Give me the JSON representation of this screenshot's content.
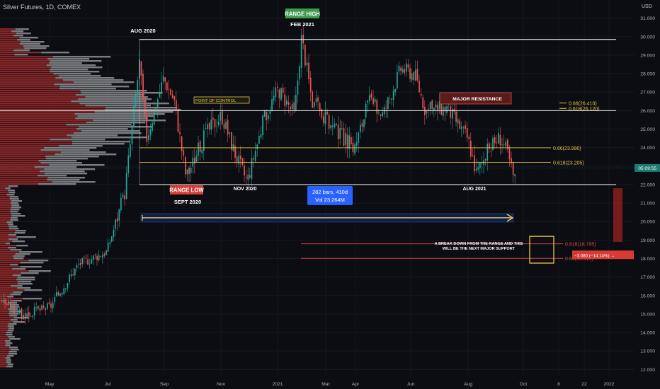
{
  "header": {
    "symbol_label": "Silver Futures, 1D, COMEX",
    "currency": "USD"
  },
  "price_axis": {
    "ticks": [
      "31.000",
      "30.000",
      "29.000",
      "28.000",
      "27.000",
      "26.000",
      "25.000",
      "24.000",
      "23.000",
      "22.000",
      "21.000",
      "20.000",
      "19.000",
      "18.000",
      "17.000",
      "16.000",
      "15.000",
      "14.000",
      "13.000",
      "12.000"
    ],
    "current_price": "05:09:55"
  },
  "time_axis": {
    "ticks": [
      "May",
      "Jul",
      "Sep",
      "Nov",
      "2021",
      "Mar",
      "Apr",
      "Jun",
      "Aug",
      "Oct",
      "8",
      "22",
      "2022"
    ]
  },
  "annotations": {
    "aug2020": "AUG 2020",
    "range_high_badge": "RANGE HIGH",
    "feb2021": "FEB 2021",
    "range_low_badge": "RANGE LOW",
    "sept2020": "SEPT 2020",
    "nov2020": "NOV 2020",
    "aug2021": "AUG 2021",
    "point_of_control": "POINT OF CONTROL",
    "major_resistance": "MAJOR RESISTANCE",
    "measure_line1": "282 bars, 410d",
    "measure_line2": "Vol 23.264M",
    "breakdown_line1": "A BREAK DOWN FROM  THE RANGE AND THIS",
    "breakdown_line2": "WILL BE THE NEXT MAJOR SUPPORT",
    "drop_label": "−3.080 (−14.14%) →"
  },
  "fib_levels": [
    {
      "label": "0.66(26.410)",
      "price": 26.41
    },
    {
      "label": "0.618(26.120)",
      "price": 26.12
    },
    {
      "label": "0.66(23.990)",
      "price": 23.99
    },
    {
      "label": "0.618(23.205)",
      "price": 23.205
    },
    {
      "label": "0.618(18.795)",
      "price": 18.795
    },
    {
      "label": "0.66(18.010)",
      "price": 18.01
    }
  ],
  "colors": {
    "up": "#26a69a",
    "down": "#ef5350",
    "range_line": "#e0e0e0",
    "fib": "#e8c547",
    "support": "#d84a3a",
    "measure_box": "#2962ff"
  },
  "chart_data": {
    "type": "candlestick",
    "title": "Silver Futures, 1D, COMEX",
    "ylim": [
      11.4,
      31.6
    ],
    "key_levels": {
      "range_high": 29.85,
      "point_of_control": 26.0,
      "range_low": 22.0
    },
    "x": [
      "2020-05",
      "2020-06",
      "2020-07",
      "2020-07-20",
      "2020-08",
      "2020-08-10",
      "2020-09",
      "2020-09-20",
      "2020-10",
      "2020-11",
      "2020-11-25",
      "2020-12",
      "2021-01",
      "2021-02",
      "2021-02-10",
      "2021-03",
      "2021-04",
      "2021-05",
      "2021-06",
      "2021-07",
      "2021-08",
      "2021-08-20",
      "2021-09"
    ],
    "close": [
      15.5,
      17.8,
      18.6,
      22.5,
      28.5,
      27.2,
      24.0,
      23.3,
      24.2,
      22.2,
      23.7,
      25.6,
      26.8,
      29.4,
      27.2,
      25.6,
      26.2,
      27.8,
      27.9,
      25.9,
      24.2,
      23.6,
      22.9
    ]
  }
}
